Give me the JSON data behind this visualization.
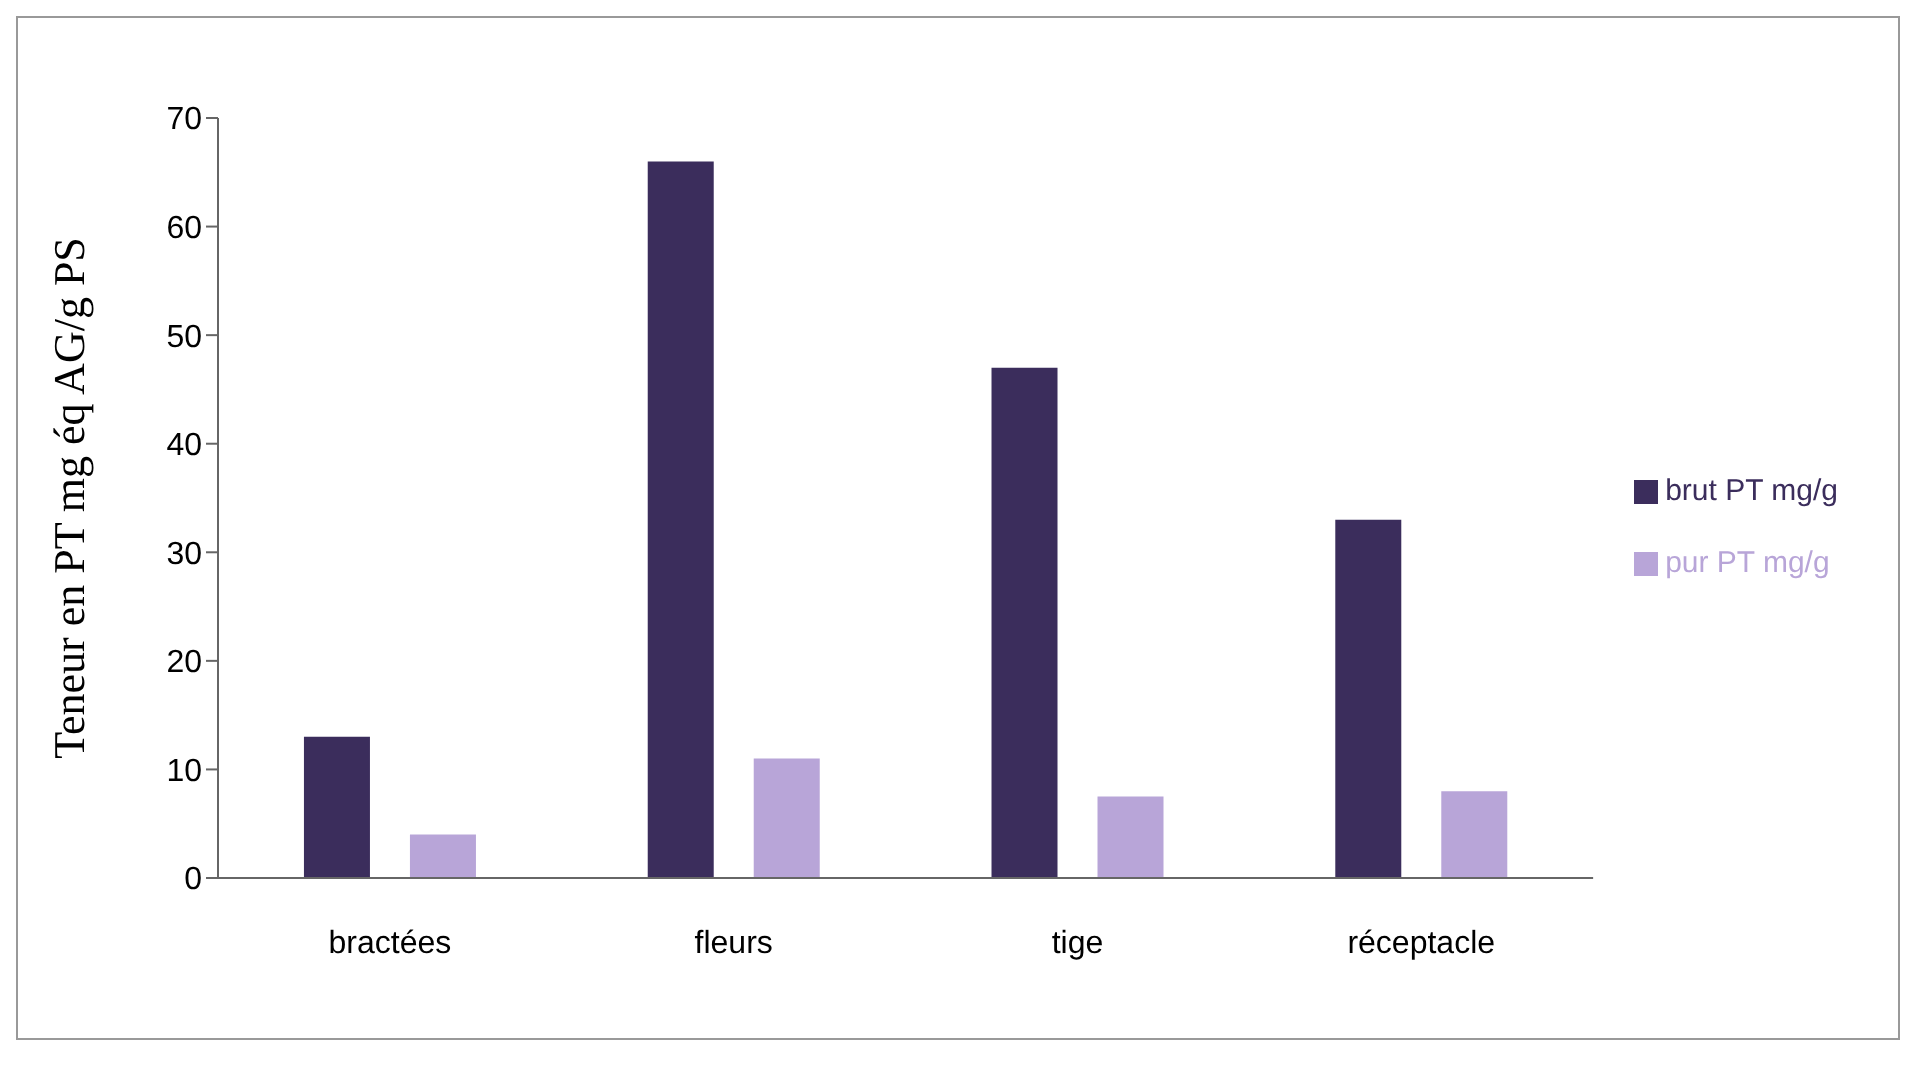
{
  "chart_data": {
    "type": "bar",
    "ylabel": "Teneur en PT mg éq AG/g PS",
    "categories": [
      "bractées",
      "fleurs",
      "tige",
      "réceptacle"
    ],
    "series": [
      {
        "name": "brut PT  mg/g",
        "color": "#3b2d5c",
        "values": [
          13,
          66,
          47,
          33
        ]
      },
      {
        "name": "pur PT  mg/g",
        "color": "#b8a5d8",
        "values": [
          4,
          11,
          7.5,
          8
        ]
      }
    ],
    "ylim": [
      0,
      70
    ],
    "yticks": [
      0,
      10,
      20,
      30,
      40,
      50,
      60,
      70
    ],
    "grid": false,
    "legend": "right"
  }
}
